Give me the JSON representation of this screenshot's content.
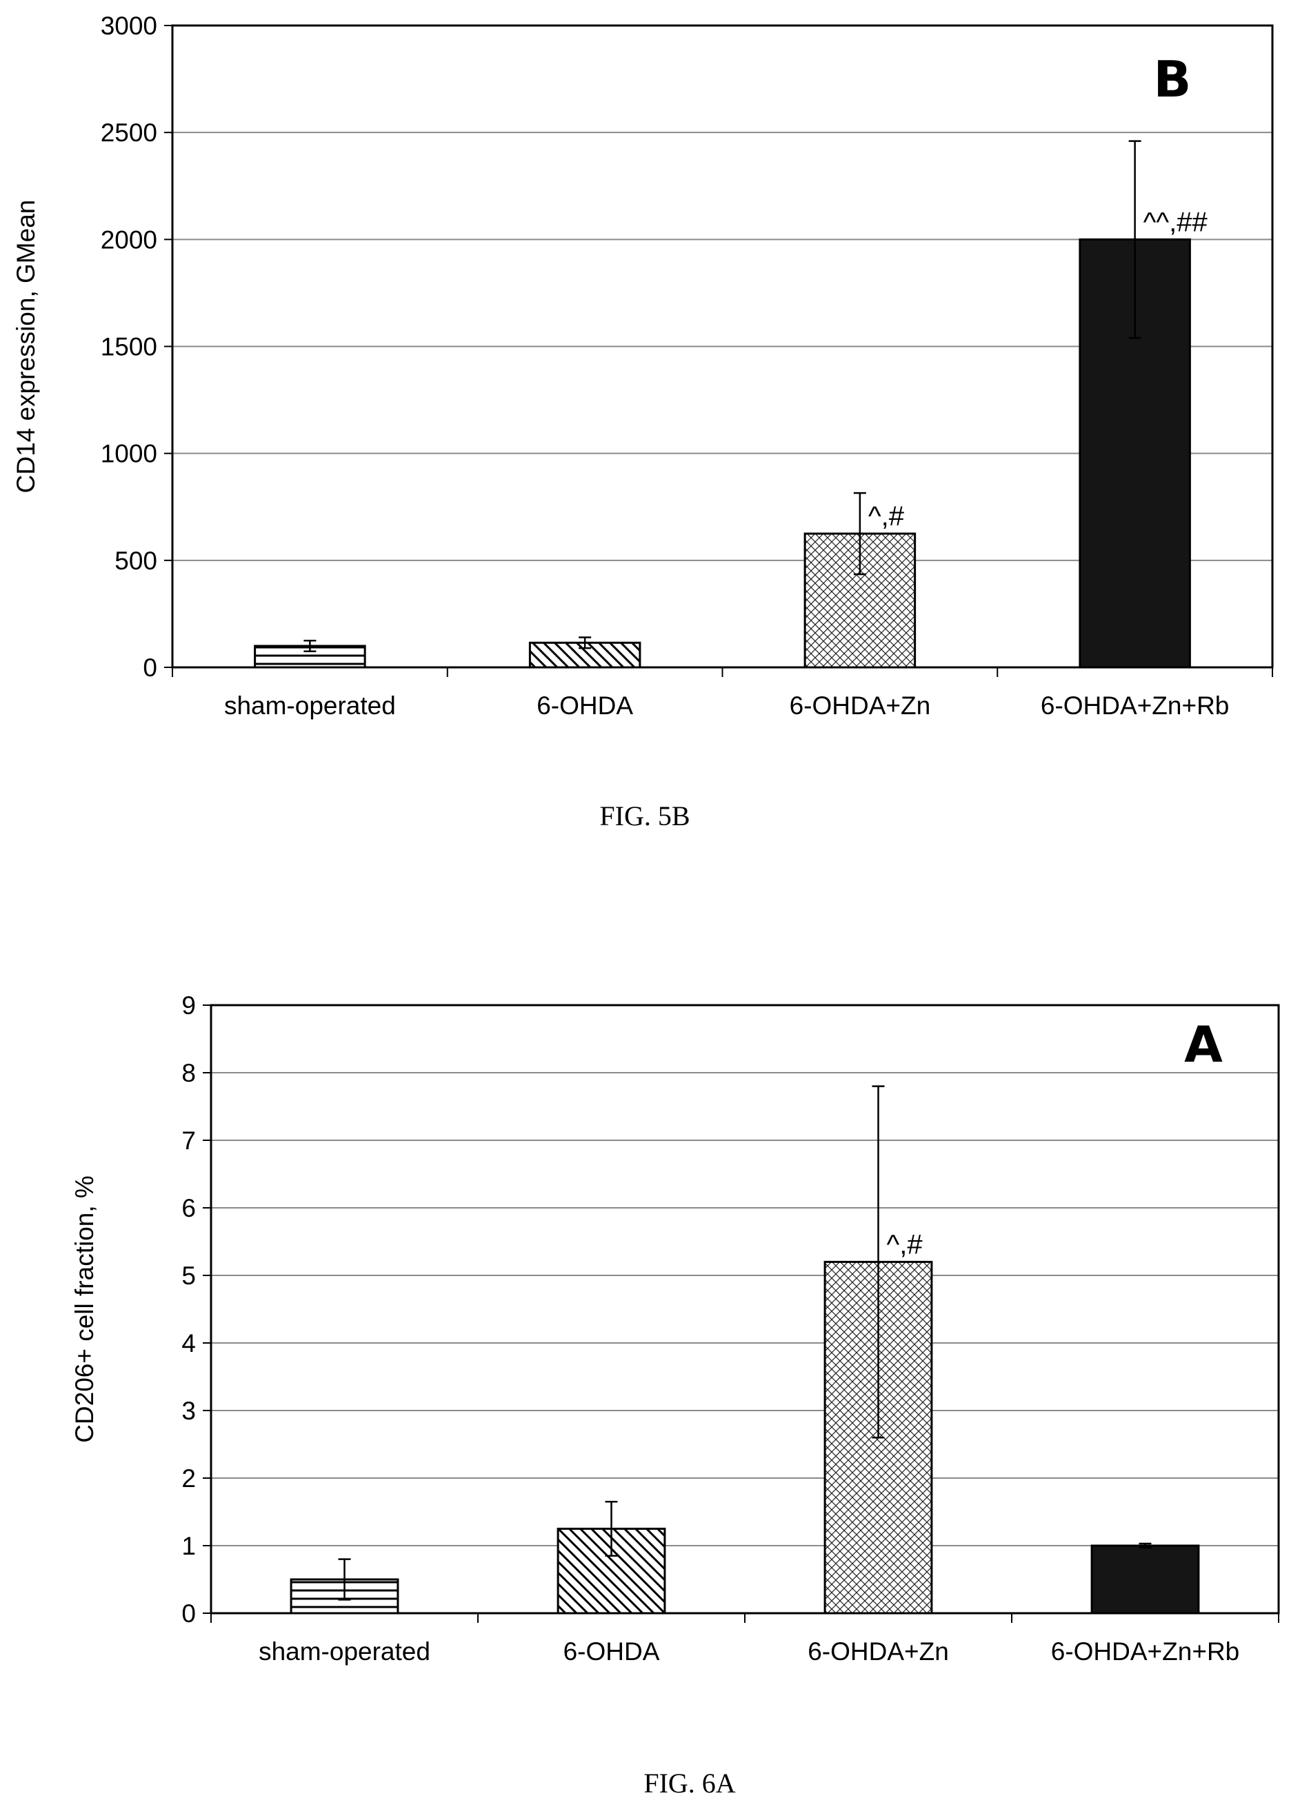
{
  "chart_data": [
    {
      "type": "bar",
      "panel_letter": "B",
      "ylabel": "CD14 expression, GMean",
      "ylim": [
        0,
        3000
      ],
      "yticks": [
        0,
        500,
        1000,
        1500,
        2000,
        2500,
        3000
      ],
      "grid": true,
      "categories": [
        "sham-operated",
        "6-OHDA",
        "6-OHDA+Zn",
        "6-OHDA+Zn+Rb"
      ],
      "values": [
        100,
        115,
        625,
        2000
      ],
      "errors": [
        25,
        25,
        190,
        460
      ],
      "annotations": [
        "",
        "",
        "^,#",
        "^^,##"
      ],
      "patterns": [
        "horizontal",
        "diagonal",
        "crosshatch",
        "solid"
      ],
      "caption": "FIG. 5B"
    },
    {
      "type": "bar",
      "panel_letter": "A",
      "ylabel": "CD206+ cell fraction, %",
      "ylim": [
        0,
        9
      ],
      "yticks": [
        0,
        1,
        2,
        3,
        4,
        5,
        6,
        7,
        8,
        9
      ],
      "grid": true,
      "categories": [
        "sham-operated",
        "6-OHDA",
        "6-OHDA+Zn",
        "6-OHDA+Zn+Rb"
      ],
      "values": [
        0.5,
        1.25,
        5.2,
        1.0
      ],
      "errors": [
        0.3,
        0.4,
        2.6,
        0.03
      ],
      "annotations": [
        "",
        "",
        "^,#",
        ""
      ],
      "patterns": [
        "horizontal",
        "diagonal",
        "crosshatch",
        "solid"
      ],
      "caption": "FIG. 6A"
    }
  ],
  "colors": {
    "bar_stroke": "#000000",
    "solid_fill": "#151515",
    "grid": "#8a8a8a"
  }
}
